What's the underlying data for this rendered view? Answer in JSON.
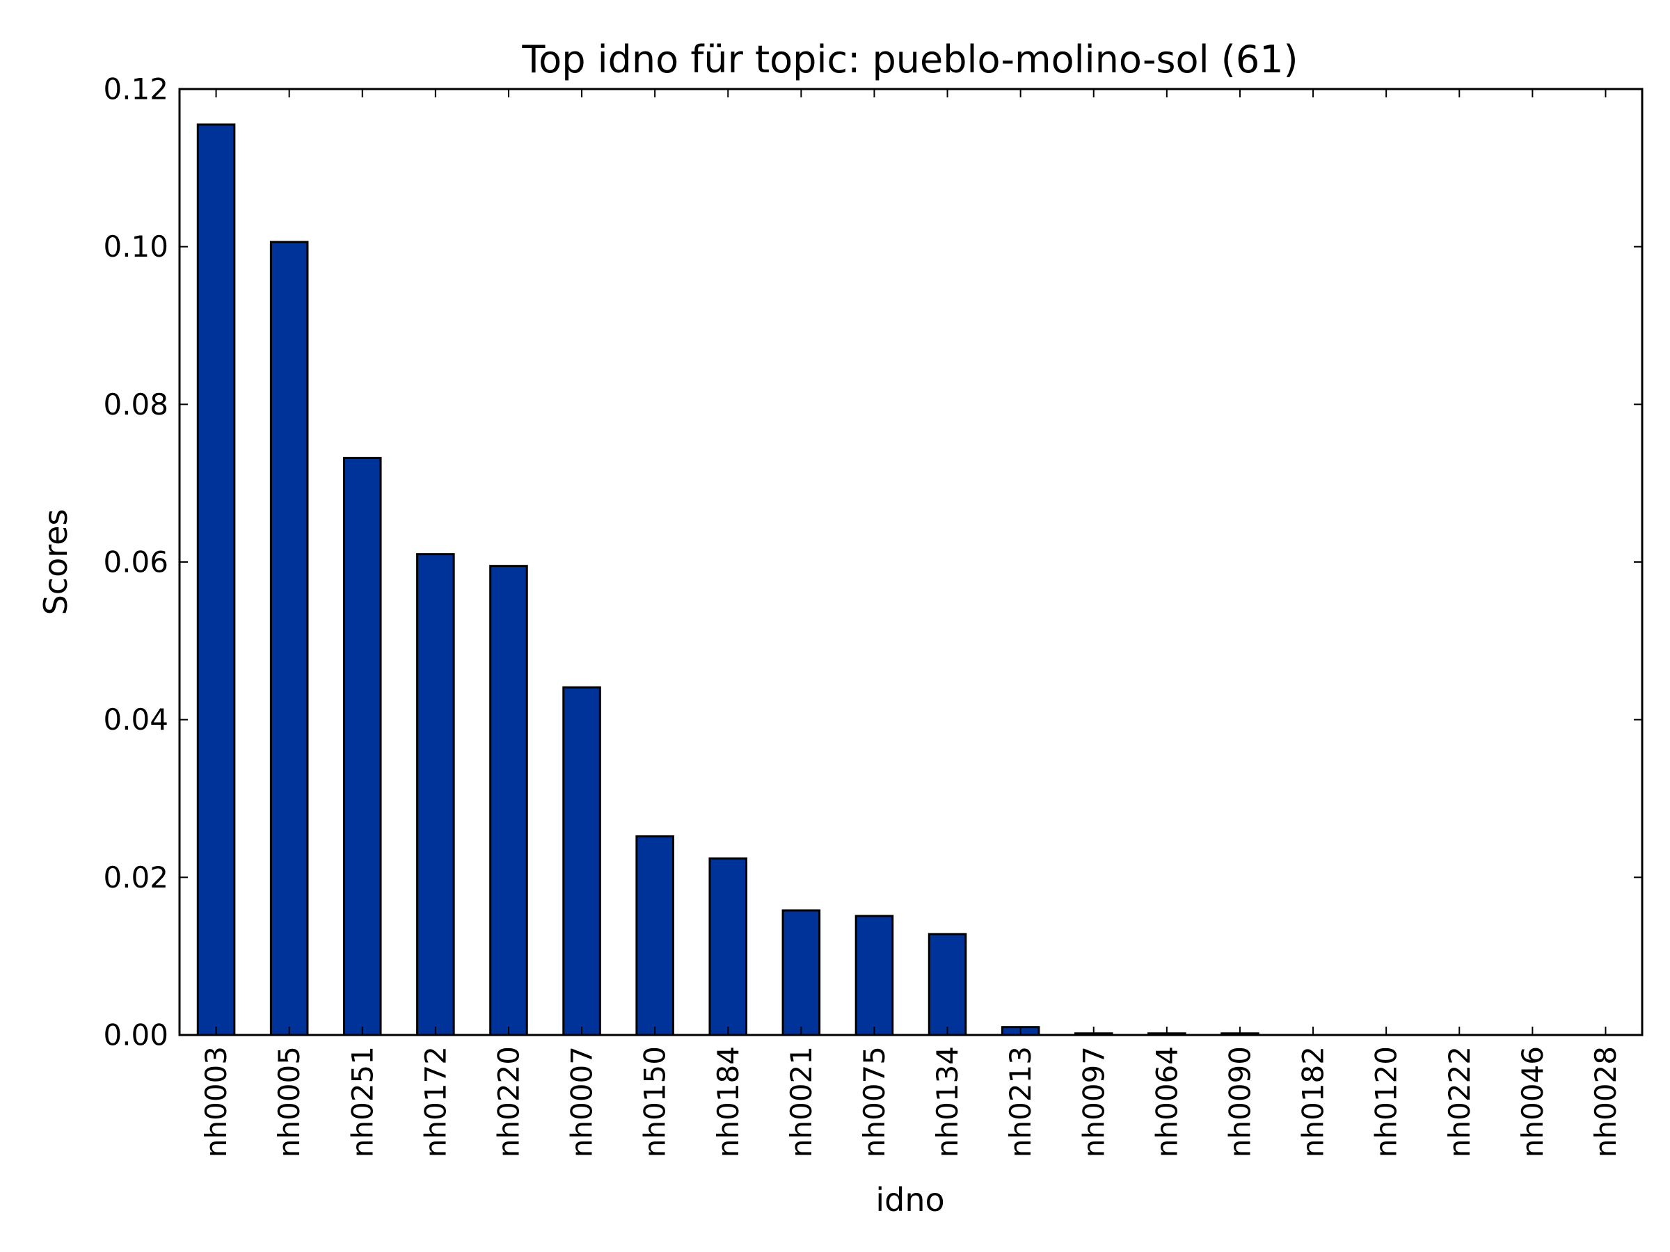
{
  "chart_data": {
    "type": "bar",
    "title": "Top idno für topic: pueblo-molino-sol (61)",
    "xlabel": "idno",
    "ylabel": "Scores",
    "categories": [
      "nh0003",
      "nh0005",
      "nh0251",
      "nh0172",
      "nh0220",
      "nh0007",
      "nh0150",
      "nh0184",
      "nh0021",
      "nh0075",
      "nh0134",
      "nh0213",
      "nh0097",
      "nh0064",
      "nh0090",
      "nh0182",
      "nh0120",
      "nh0222",
      "nh0046",
      "nh0028"
    ],
    "values": [
      0.1155,
      0.1006,
      0.0732,
      0.061,
      0.0595,
      0.0441,
      0.0252,
      0.0224,
      0.0158,
      0.0151,
      0.0128,
      0.001,
      0.0002,
      0.0002,
      0.0002,
      0.0,
      0.0,
      0.0,
      0.0,
      0.0
    ],
    "ylim": [
      0,
      0.12
    ],
    "yticks": [
      "0.00",
      "0.02",
      "0.04",
      "0.06",
      "0.08",
      "0.10",
      "0.12"
    ],
    "bar_color": "#003399",
    "edge_color": "#000000",
    "grid": false,
    "legend": "none"
  }
}
